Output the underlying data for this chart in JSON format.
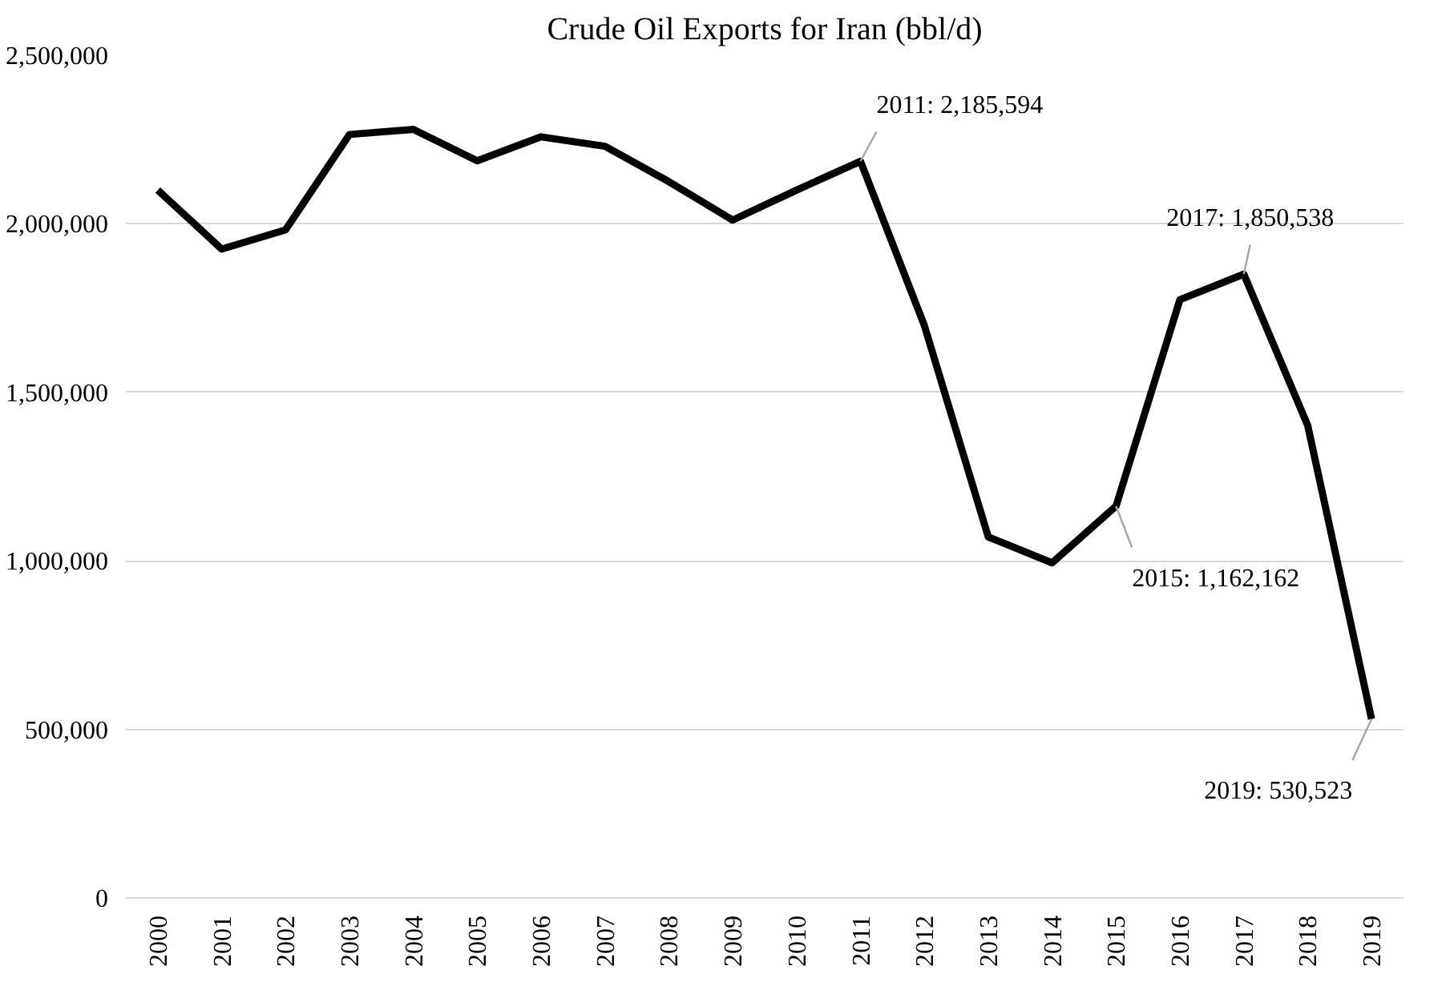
{
  "chart_data": {
    "type": "line",
    "title": "Crude Oil Exports for Iran (bbl/d)",
    "categories": [
      "2000",
      "2001",
      "2002",
      "2003",
      "2004",
      "2005",
      "2006",
      "2007",
      "2008",
      "2009",
      "2010",
      "2011",
      "2012",
      "2013",
      "2014",
      "2015",
      "2016",
      "2017",
      "2018",
      "2019"
    ],
    "series": [
      {
        "color": "#000000",
        "values": [
          2100000,
          1925000,
          1982000,
          2265000,
          2280000,
          2187000,
          2258000,
          2230000,
          2125000,
          2011000,
          2100000,
          2185594,
          1698000,
          1071000,
          994000,
          1162162,
          1775000,
          1850538,
          1402000,
          530523
        ]
      }
    ],
    "ylim": [
      0,
      2500000
    ],
    "yticks": [
      {
        "value": 0,
        "label": "0"
      },
      {
        "value": 500000,
        "label": "500,000"
      },
      {
        "value": 1000000,
        "label": "1,000,000"
      },
      {
        "value": 1500000,
        "label": "1,500,000"
      },
      {
        "value": 2000000,
        "label": "2,000,000"
      },
      {
        "value": 2500000,
        "label": "2,500,000"
      }
    ],
    "grid": "y",
    "marker": "none",
    "line_style": "solid",
    "annotations": [
      {
        "text": "2011: 2,185,594",
        "x": "2011",
        "y": 2185594
      },
      {
        "text": "2015: 1,162,162",
        "x": "2015",
        "y": 1162162
      },
      {
        "text": "2017: 1,850,538",
        "x": "2017",
        "y": 1850538
      },
      {
        "text": "2019: 530,523",
        "x": "2019",
        "y": 530523
      }
    ]
  }
}
